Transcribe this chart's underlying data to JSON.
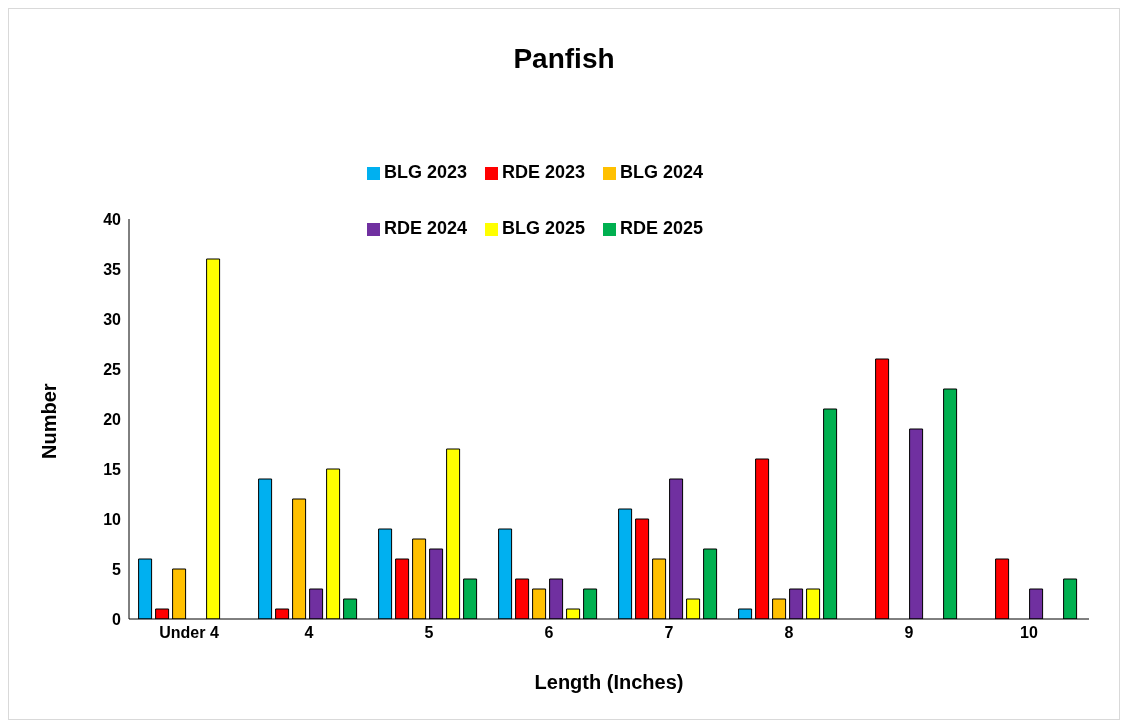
{
  "chart_data": {
    "type": "bar",
    "title": "Panfish",
    "xlabel": "Length (Inches)",
    "ylabel": "Number",
    "categories": [
      "Under 4",
      "4",
      "5",
      "6",
      "7",
      "8",
      "9",
      "10"
    ],
    "series": [
      {
        "name": "BLG 2023",
        "color": "#00b0f0",
        "values": [
          6,
          14,
          9,
          9,
          11,
          1,
          null,
          null
        ]
      },
      {
        "name": "RDE 2023",
        "color": "#ff0000",
        "values": [
          1,
          1,
          6,
          4,
          10,
          16,
          26,
          6
        ]
      },
      {
        "name": "BLG 2024",
        "color": "#ffc000",
        "values": [
          5,
          12,
          8,
          3,
          6,
          2,
          null,
          null
        ]
      },
      {
        "name": "RDE 2024",
        "color": "#7030a0",
        "values": [
          null,
          3,
          7,
          4,
          14,
          3,
          19,
          3
        ]
      },
      {
        "name": "BLG 2025",
        "color": "#ffff00",
        "values": [
          36,
          15,
          17,
          1,
          2,
          3,
          null,
          null
        ]
      },
      {
        "name": "RDE 2025",
        "color": "#00b050",
        "values": [
          null,
          2,
          4,
          3,
          7,
          21,
          23,
          4
        ]
      }
    ],
    "ylim": [
      0,
      40
    ],
    "yticks": [
      0,
      5,
      10,
      15,
      20,
      25,
      30,
      35,
      40
    ],
    "grid": false,
    "legend": "top"
  }
}
